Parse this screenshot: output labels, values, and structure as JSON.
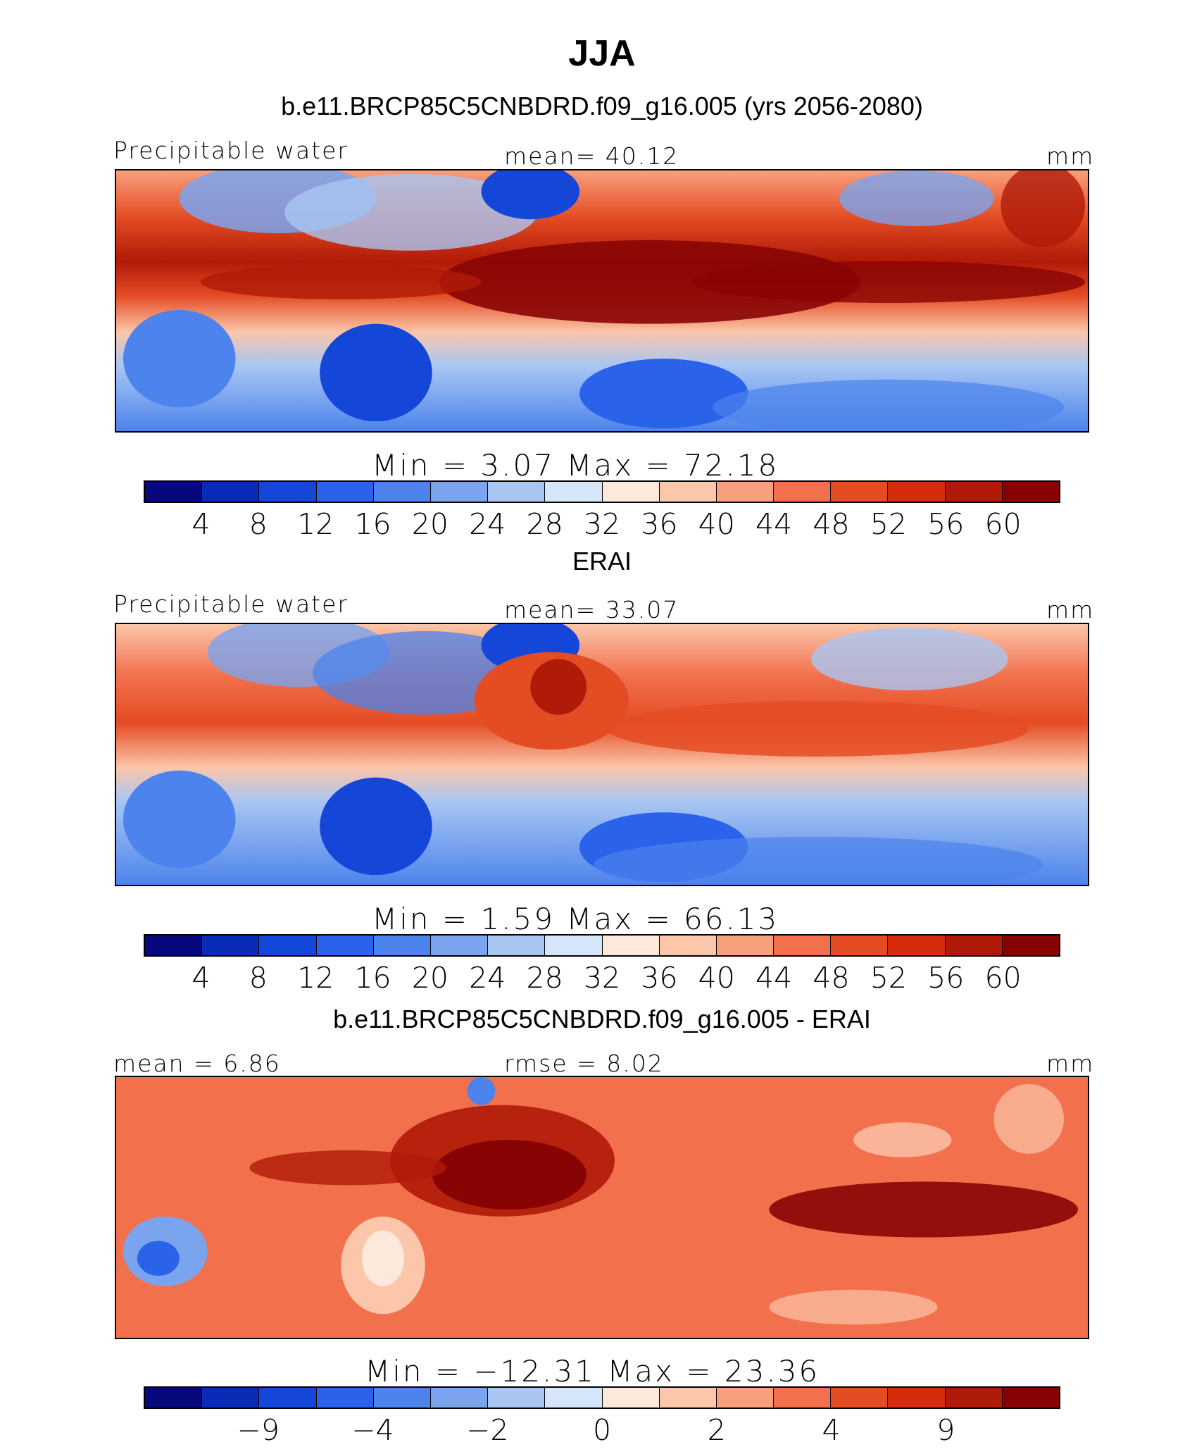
{
  "figure": {
    "title": "JJA"
  },
  "panels": [
    {
      "heading": "b.e11.BRCP85C5CNBDRD.f09_g16.005 (yrs 2056-2080)",
      "left_label": "Precipitable water",
      "center_label": "mean=   40.12",
      "right_label": "mm",
      "stats": "Min  =     3.07  Max  =    72.18",
      "palette": "full",
      "tick_labels": [
        "4",
        "8",
        "12",
        "16",
        "20",
        "24",
        "28",
        "32",
        "36",
        "40",
        "44",
        "48",
        "52",
        "56",
        "60"
      ]
    },
    {
      "heading": "ERAI",
      "left_label": "Precipitable water",
      "center_label": "mean=   33.07",
      "right_label": "mm",
      "stats": "Min  =     1.59  Max  =    66.13",
      "palette": "full",
      "tick_labels": [
        "4",
        "8",
        "12",
        "16",
        "20",
        "24",
        "28",
        "32",
        "36",
        "40",
        "44",
        "48",
        "52",
        "56",
        "60"
      ]
    },
    {
      "heading": "b.e11.BRCP85C5CNBDRD.f09_g16.005 - ERAI",
      "left_label": "mean  =     6.86",
      "center_label": "rmse  =     8.02",
      "right_label": "mm",
      "stats": "Min  = −12.31  Max  =    23.36",
      "palette": "diff",
      "tick_labels": [
        "−9",
        "−4",
        "−2",
        "0",
        "2",
        "4",
        "9"
      ]
    }
  ],
  "colorbar": {
    "colors": [
      "#08087e",
      "#0a2bb8",
      "#1446d8",
      "#2a63ea",
      "#4c83ec",
      "#7aa4ee",
      "#a9c6f3",
      "#d6e6fa",
      "#fde9dc",
      "#fbc6aa",
      "#f8a07c",
      "#f2704c",
      "#e44c24",
      "#d42c0c",
      "#b01a08",
      "#880404"
    ]
  }
}
